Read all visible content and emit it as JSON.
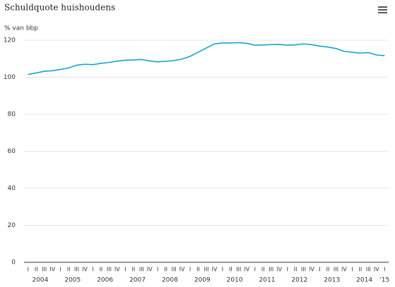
{
  "chart_data": {
    "type": "line",
    "title": "Schuldquote huishoudens",
    "y_label": "% van bbp",
    "categories": [
      "I",
      "II",
      "III",
      "IV",
      "I",
      "II",
      "III",
      "IV",
      "I",
      "II",
      "III",
      "IV",
      "I",
      "II",
      "III",
      "IV",
      "I",
      "II",
      "III",
      "IV",
      "I",
      "II",
      "III",
      "IV",
      "I",
      "II",
      "III",
      "IV",
      "I",
      "II",
      "III",
      "IV",
      "I",
      "II",
      "III",
      "IV",
      "I",
      "II",
      "III",
      "IV",
      "I",
      "II",
      "III",
      "IV",
      "I"
    ],
    "year_labels": [
      "2004",
      "2005",
      "2006",
      "2007",
      "2008",
      "2009",
      "2010",
      "2011",
      "2012",
      "2013",
      "2014",
      "'15"
    ],
    "series": [
      {
        "name": "Schuldquote huishoudens",
        "color": "#1aa3cc",
        "values": [
          101.5,
          102.3,
          103.2,
          103.5,
          104.2,
          105,
          106.5,
          107,
          106.8,
          107.5,
          108,
          108.7,
          109.2,
          109.3,
          109.6,
          108.8,
          108.3,
          108.6,
          109,
          109.8,
          111.3,
          113.5,
          115.8,
          118,
          118.5,
          118.5,
          118.7,
          118.3,
          117.3,
          117.4,
          117.6,
          117.7,
          117.3,
          117.5,
          118,
          117.6,
          116.8,
          116.3,
          115.5,
          114,
          113.5,
          113,
          113.3,
          112,
          111.7
        ]
      }
    ],
    "ylim": [
      0,
      120
    ],
    "yticks": [
      0,
      20,
      40,
      60,
      80,
      100,
      120
    ],
    "grid": true
  }
}
